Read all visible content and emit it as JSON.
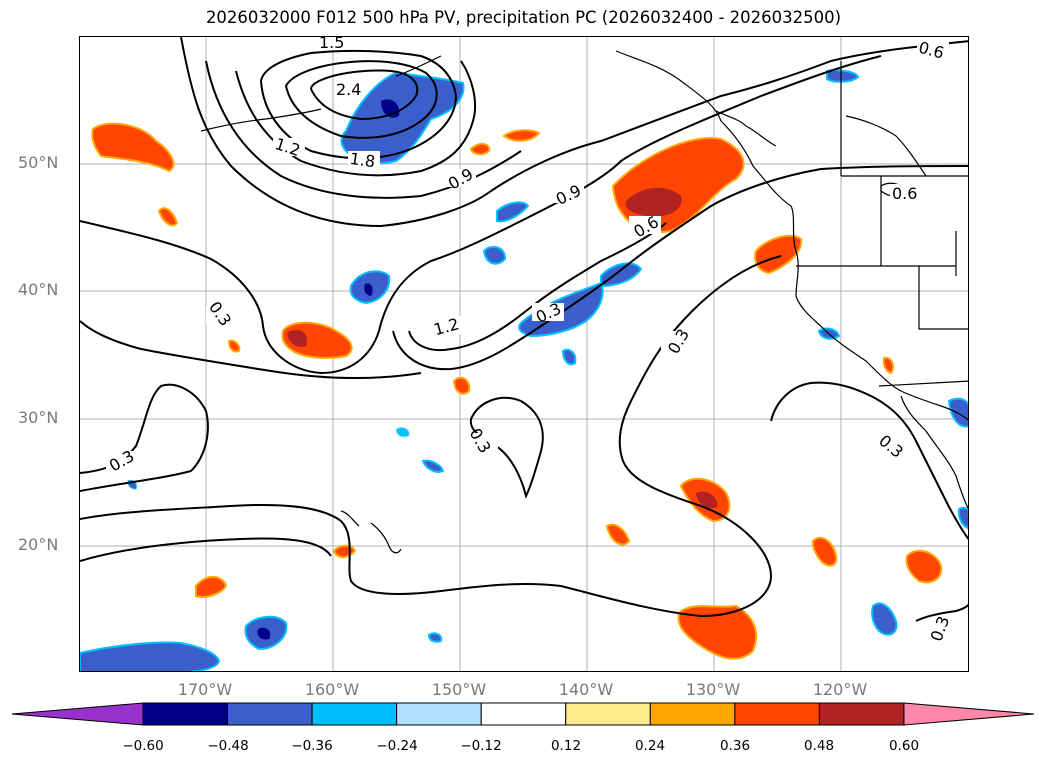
{
  "figure": {
    "title": "2026032000 F012 500 hPa PV, precipitation PC (2026032400 - 2026032500)"
  },
  "axes": {
    "lat_ticks": [
      "50°N",
      "40°N",
      "30°N",
      "20°N"
    ],
    "lon_ticks": [
      "170°W",
      "160°W",
      "150°W",
      "140°W",
      "130°W",
      "120°W"
    ]
  },
  "contour_labels": [
    "1.5",
    "2.4",
    "1.2",
    "1.8",
    "0.9",
    "0.9",
    "0.6",
    "0.6",
    "0.6",
    "0.3",
    "1.2",
    "0.3",
    "0.3",
    "0.3",
    "0.3",
    "0.3",
    "0.3"
  ],
  "colorbar": {
    "ticks": [
      "−0.60",
      "−0.48",
      "−0.36",
      "−0.24",
      "−0.12",
      "0.12",
      "0.24",
      "0.36",
      "0.48",
      "0.60"
    ],
    "colors": [
      "#9932cc",
      "#00008b",
      "#3a5fcd",
      "#00bfff",
      "#b0e2ff",
      "#ffffff",
      "#ffec8b",
      "#ffa500",
      "#ff4500",
      "#b22222",
      "#ff88aa"
    ]
  },
  "palette": {
    "pos_low": "#ffec8b",
    "pos_mid": "#ffa500",
    "pos_high": "#ff4500",
    "pos_max": "#b22222",
    "neg_low": "#b0e2ff",
    "neg_mid": "#00bfff",
    "neg_high": "#3a5fcd",
    "neg_max": "#00008b"
  }
}
